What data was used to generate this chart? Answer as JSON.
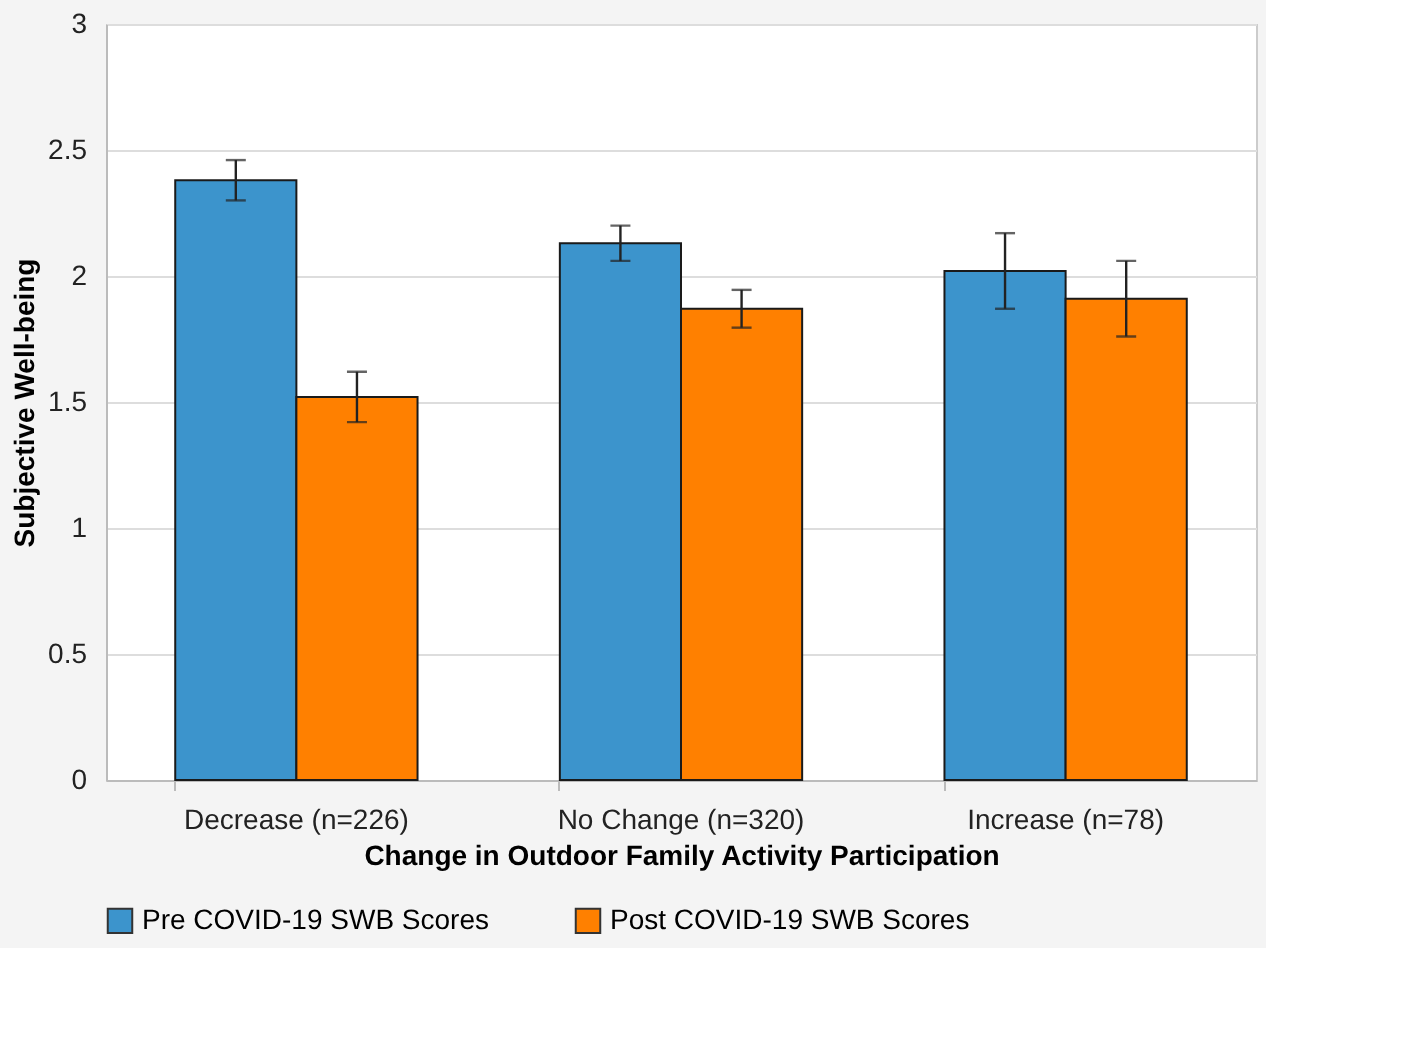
{
  "chart_data": {
    "type": "bar",
    "xlabel": "Change in Outdoor Family Activity Participation",
    "ylabel": "Subjective Well-being",
    "categories": [
      "Decrease (n=226)",
      "No Change (n=320)",
      "Increase (n=78)"
    ],
    "series": [
      {
        "name": "Pre COVID-19 SWB Scores",
        "color": "#3c94cc",
        "values": [
          2.38,
          2.13,
          2.02
        ],
        "errors": [
          0.08,
          0.07,
          0.15
        ]
      },
      {
        "name": "Post COVID-19 SWB Scores",
        "color": "#ff8000",
        "values": [
          1.52,
          1.87,
          1.91
        ],
        "errors": [
          0.1,
          0.075,
          0.15
        ]
      }
    ],
    "ylim": [
      0,
      3
    ],
    "yticks": [
      0,
      0.5,
      1,
      1.5,
      2,
      2.5,
      3
    ],
    "grid": "y",
    "legend": "bottom"
  }
}
